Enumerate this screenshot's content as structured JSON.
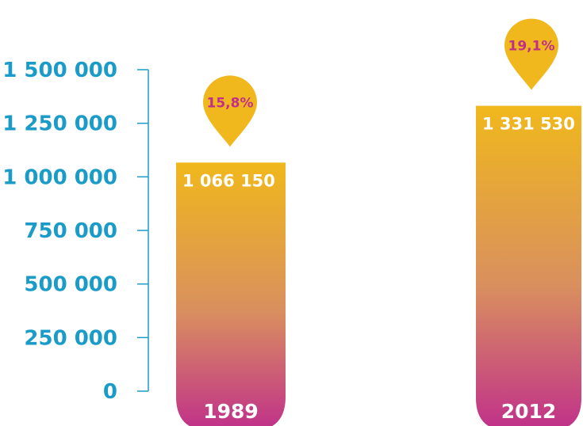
{
  "colors": {
    "axis": "#1a9bc8",
    "bar_top": "#f0b81c",
    "bar_bottom": "#c0308a",
    "marker": "#f0b81c",
    "pct_text": "#c0308a"
  },
  "chart_data": {
    "type": "bar",
    "title": "",
    "xlabel": "",
    "ylabel": "",
    "ylim": [
      0,
      1500000
    ],
    "y_ticks": [
      {
        "value": 0,
        "label": "0"
      },
      {
        "value": 250000,
        "label": "250 000"
      },
      {
        "value": 500000,
        "label": "500 000"
      },
      {
        "value": 750000,
        "label": "750 000"
      },
      {
        "value": 1000000,
        "label": "1 000 000"
      },
      {
        "value": 1250000,
        "label": "1 250 000"
      },
      {
        "value": 1500000,
        "label": "1 500 000"
      }
    ],
    "categories": [
      "1989",
      "2012"
    ],
    "values": [
      1066150,
      1331530
    ],
    "value_labels": [
      "1 066 150",
      "1 331 530"
    ],
    "percentages": [
      "15,8%",
      "19,1%"
    ]
  }
}
